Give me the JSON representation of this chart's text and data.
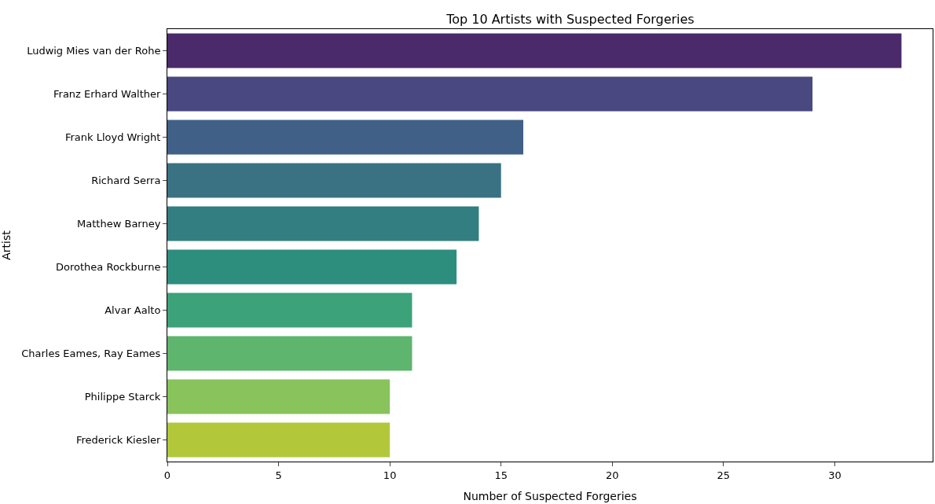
{
  "chart_data": {
    "type": "bar",
    "orientation": "horizontal",
    "title": "Top 10 Artists with Suspected Forgeries",
    "xlabel": "Number of Suspected Forgeries",
    "ylabel": "Artist",
    "categories": [
      "Ludwig Mies van der Rohe",
      "Franz Erhard Walther",
      "Frank Lloyd Wright",
      "Richard Serra",
      "Matthew Barney",
      "Dorothea Rockburne",
      "Alvar Aalto",
      "Charles Eames, Ray Eames",
      "Philippe Starck",
      "Frederick Kiesler"
    ],
    "values": [
      33,
      29,
      16,
      15,
      14,
      13,
      11,
      11,
      10,
      10
    ],
    "colors": [
      "#4a2a6b",
      "#4a4880",
      "#416087",
      "#3a7284",
      "#327e80",
      "#2d8e7e",
      "#3ca27a",
      "#5eb56d",
      "#89c35b",
      "#b2c83a"
    ],
    "xlim": [
      0,
      34.4
    ],
    "xticks": [
      0,
      5,
      10,
      15,
      20,
      25,
      30
    ]
  }
}
